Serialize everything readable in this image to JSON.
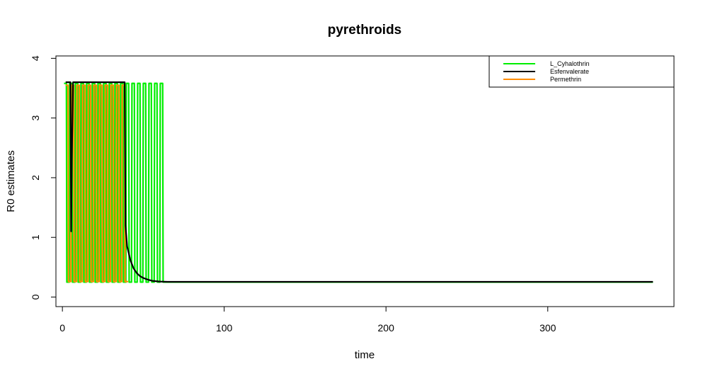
{
  "chart_data": {
    "type": "line",
    "title": "pyrethroids",
    "xlabel": "time",
    "ylabel": "R0 estimates",
    "xlim": [
      -4,
      378
    ],
    "ylim": [
      -0.16,
      4.04
    ],
    "xticks": [
      0,
      100,
      200,
      300
    ],
    "yticks": [
      0,
      1,
      2,
      3,
      4
    ],
    "grid": false,
    "legend_position": "top-right",
    "series": [
      {
        "name": "L_Cyhalothrin",
        "color": "#00ee00",
        "pattern": "periodic",
        "period": 3.5,
        "start": 1,
        "end": 62,
        "high": 3.58,
        "low": 0.25,
        "tail_end": 365,
        "tail_value": 0.25
      },
      {
        "name": "Esfenvalerate",
        "color": "#000000",
        "points": [
          [
            2,
            3.6
          ],
          [
            5,
            3.6
          ],
          [
            5.4,
            1.1
          ],
          [
            5.8,
            2.3
          ],
          [
            6.6,
            3.6
          ],
          [
            38.5,
            3.6
          ],
          [
            39,
            1.2
          ],
          [
            40,
            0.85
          ],
          [
            42,
            0.62
          ],
          [
            44,
            0.48
          ],
          [
            46,
            0.4
          ],
          [
            48,
            0.35
          ],
          [
            50,
            0.32
          ],
          [
            53,
            0.29
          ],
          [
            56,
            0.27
          ],
          [
            60,
            0.26
          ],
          [
            65,
            0.255
          ],
          [
            365,
            0.255
          ]
        ]
      },
      {
        "name": "Permethrin",
        "color": "#ff8c00",
        "pattern": "periodic",
        "period": 3.5,
        "start": 2,
        "end": 38,
        "high": 3.55,
        "low": 0.26,
        "tail_end": 39,
        "tail_value": 0.26
      }
    ]
  }
}
